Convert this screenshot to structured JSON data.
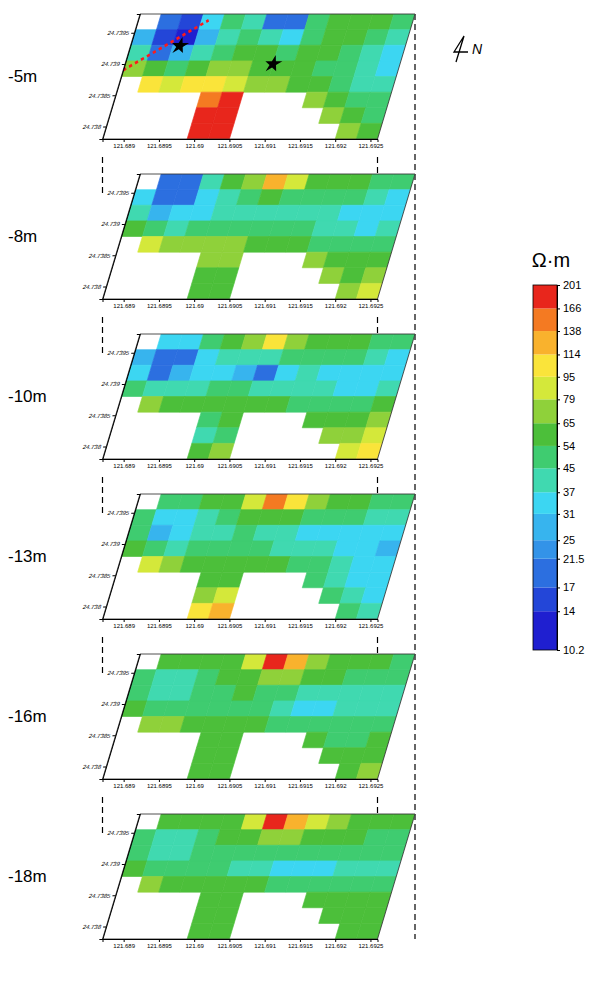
{
  "chart_data": {
    "type": "heatmap",
    "xlim": [
      121.6887,
      121.6926
    ],
    "xticks": [
      121.689,
      121.6895,
      121.69,
      121.6905,
      121.691,
      121.6915,
      121.692,
      121.6925
    ],
    "ylim": [
      24.7378,
      24.7398
    ],
    "yticks": [
      24.738,
      24.7385,
      24.739,
      24.7395
    ],
    "x": [
      121.68885,
      121.68915,
      121.68945,
      121.68975,
      121.69005,
      121.69035,
      121.69065,
      121.69095,
      121.69125,
      121.69155,
      121.69185,
      121.69215,
      121.69245
    ],
    "y": [
      24.739675,
      24.739425,
      24.739175,
      24.738925,
      24.738675,
      24.738425,
      24.738175,
      24.737925
    ],
    "annotations": [
      "N"
    ],
    "colorbar": {
      "title": "Ω·m",
      "ticks": [
        10.2,
        14,
        17,
        21.5,
        25,
        31,
        37,
        45,
        54,
        65,
        79,
        95,
        114,
        138,
        166,
        201
      ],
      "colors": [
        "#1f1fd0",
        "#2346d8",
        "#2c6fe0",
        "#3393e8",
        "#37b4ee",
        "#3cd6f2",
        "#40d9b0",
        "#3fcc70",
        "#4cbf3a",
        "#8fd13a",
        "#d4e83a",
        "#fae43a",
        "#f9b22d",
        "#f47a22",
        "#e8261c"
      ]
    },
    "slices": [
      {
        "title": "-5m",
        "values": [
          [
            null,
            17,
            14,
            31,
            45,
            37,
            21,
            17,
            45,
            54,
            54,
            54,
            45
          ],
          [
            25,
            14,
            12,
            25,
            37,
            45,
            37,
            31,
            45,
            54,
            54,
            45,
            37
          ],
          [
            37,
            21,
            25,
            37,
            45,
            54,
            54,
            45,
            54,
            54,
            45,
            37,
            31
          ],
          [
            65,
            54,
            45,
            54,
            65,
            65,
            54,
            54,
            54,
            45,
            45,
            37,
            31
          ],
          [
            null,
            95,
            79,
            95,
            95,
            79,
            65,
            65,
            54,
            54,
            45,
            37,
            37
          ],
          [
            null,
            null,
            null,
            null,
            150,
            170,
            null,
            null,
            null,
            65,
            54,
            45,
            45
          ],
          [
            null,
            null,
            null,
            null,
            190,
            195,
            null,
            null,
            null,
            null,
            65,
            54,
            45
          ],
          [
            null,
            null,
            null,
            null,
            180,
            190,
            null,
            null,
            null,
            null,
            null,
            65,
            54
          ]
        ],
        "points": [
          {
            "x": 121.6894,
            "y": 24.73929
          },
          {
            "x": 121.6908,
            "y": 24.739
          }
        ],
        "line": {
          "x": [
            121.6887,
            121.6897
          ],
          "y": [
            24.7389,
            24.7397
          ]
        }
      },
      {
        "title": "-8m",
        "values": [
          [
            null,
            21,
            17,
            37,
            54,
            65,
            114,
            79,
            54,
            54,
            54,
            45,
            45
          ],
          [
            31,
            17,
            21,
            31,
            37,
            45,
            54,
            45,
            45,
            45,
            45,
            37,
            31
          ],
          [
            37,
            25,
            31,
            31,
            37,
            37,
            37,
            37,
            37,
            37,
            31,
            31,
            31
          ],
          [
            54,
            45,
            37,
            45,
            45,
            45,
            45,
            45,
            45,
            37,
            37,
            31,
            37
          ],
          [
            null,
            79,
            65,
            65,
            65,
            65,
            54,
            54,
            54,
            45,
            45,
            45,
            45
          ],
          [
            null,
            null,
            null,
            null,
            65,
            65,
            null,
            null,
            null,
            65,
            54,
            54,
            54
          ],
          [
            null,
            null,
            null,
            null,
            54,
            54,
            null,
            null,
            null,
            null,
            65,
            54,
            65
          ],
          [
            null,
            null,
            null,
            null,
            54,
            54,
            null,
            null,
            null,
            null,
            null,
            65,
            79
          ]
        ]
      },
      {
        "title": "-10m",
        "values": [
          [
            null,
            31,
            31,
            45,
            54,
            65,
            95,
            65,
            54,
            54,
            54,
            45,
            45
          ],
          [
            25,
            21,
            21,
            31,
            37,
            37,
            37,
            45,
            45,
            45,
            45,
            37,
            31
          ],
          [
            31,
            21,
            25,
            31,
            31,
            25,
            21,
            31,
            37,
            31,
            31,
            31,
            31
          ],
          [
            45,
            37,
            37,
            37,
            45,
            45,
            37,
            37,
            37,
            37,
            31,
            31,
            37
          ],
          [
            null,
            65,
            54,
            54,
            54,
            54,
            54,
            54,
            45,
            45,
            45,
            45,
            54
          ],
          [
            null,
            null,
            null,
            null,
            45,
            54,
            null,
            null,
            null,
            54,
            54,
            54,
            65
          ],
          [
            null,
            null,
            null,
            null,
            37,
            45,
            null,
            null,
            null,
            null,
            65,
            65,
            79
          ],
          [
            null,
            null,
            null,
            null,
            54,
            65,
            null,
            null,
            null,
            null,
            null,
            79,
            95
          ]
        ]
      },
      {
        "title": "-13m",
        "values": [
          [
            null,
            45,
            45,
            54,
            54,
            79,
            138,
            95,
            65,
            54,
            54,
            45,
            45
          ],
          [
            45,
            31,
            31,
            37,
            45,
            54,
            54,
            54,
            45,
            45,
            45,
            37,
            37
          ],
          [
            45,
            25,
            31,
            37,
            37,
            45,
            37,
            37,
            31,
            31,
            31,
            31,
            31
          ],
          [
            54,
            45,
            37,
            45,
            45,
            45,
            45,
            37,
            37,
            37,
            31,
            31,
            25
          ],
          [
            null,
            79,
            65,
            54,
            54,
            54,
            54,
            54,
            45,
            45,
            37,
            31,
            31
          ],
          [
            null,
            null,
            null,
            null,
            54,
            54,
            null,
            null,
            null,
            45,
            37,
            31,
            31
          ],
          [
            null,
            null,
            null,
            null,
            65,
            79,
            null,
            null,
            null,
            null,
            45,
            37,
            31
          ],
          [
            null,
            null,
            null,
            null,
            95,
            114,
            null,
            null,
            null,
            null,
            null,
            45,
            37
          ]
        ]
      },
      {
        "title": "-16m",
        "values": [
          [
            null,
            54,
            54,
            54,
            54,
            79,
            166,
            114,
            65,
            54,
            54,
            54,
            45
          ],
          [
            45,
            37,
            37,
            45,
            54,
            54,
            65,
            65,
            54,
            54,
            45,
            45,
            45
          ],
          [
            45,
            37,
            37,
            45,
            45,
            54,
            45,
            45,
            37,
            37,
            37,
            37,
            37
          ],
          [
            54,
            45,
            45,
            45,
            45,
            45,
            45,
            37,
            31,
            31,
            37,
            37,
            37
          ],
          [
            null,
            65,
            65,
            54,
            54,
            54,
            54,
            45,
            45,
            45,
            45,
            45,
            45
          ],
          [
            null,
            null,
            null,
            null,
            54,
            54,
            null,
            null,
            null,
            54,
            45,
            45,
            54
          ],
          [
            null,
            null,
            null,
            null,
            54,
            54,
            null,
            null,
            null,
            null,
            54,
            54,
            54
          ],
          [
            null,
            null,
            null,
            null,
            54,
            54,
            null,
            null,
            null,
            null,
            null,
            54,
            65
          ]
        ]
      },
      {
        "title": "-18m",
        "values": [
          [
            null,
            54,
            54,
            54,
            54,
            79,
            166,
            114,
            79,
            65,
            54,
            54,
            54
          ],
          [
            45,
            37,
            37,
            45,
            54,
            54,
            65,
            65,
            54,
            54,
            54,
            45,
            45
          ],
          [
            45,
            37,
            37,
            45,
            45,
            45,
            45,
            45,
            45,
            45,
            45,
            45,
            45
          ],
          [
            54,
            45,
            45,
            45,
            45,
            37,
            37,
            31,
            31,
            31,
            37,
            37,
            37
          ],
          [
            null,
            65,
            54,
            54,
            54,
            54,
            54,
            45,
            45,
            45,
            45,
            45,
            45
          ],
          [
            null,
            null,
            null,
            null,
            54,
            54,
            null,
            null,
            null,
            54,
            54,
            54,
            54
          ],
          [
            null,
            null,
            null,
            null,
            54,
            54,
            null,
            null,
            null,
            null,
            54,
            54,
            54
          ],
          [
            null,
            null,
            null,
            null,
            54,
            54,
            null,
            null,
            null,
            null,
            null,
            54,
            54
          ]
        ]
      }
    ]
  }
}
